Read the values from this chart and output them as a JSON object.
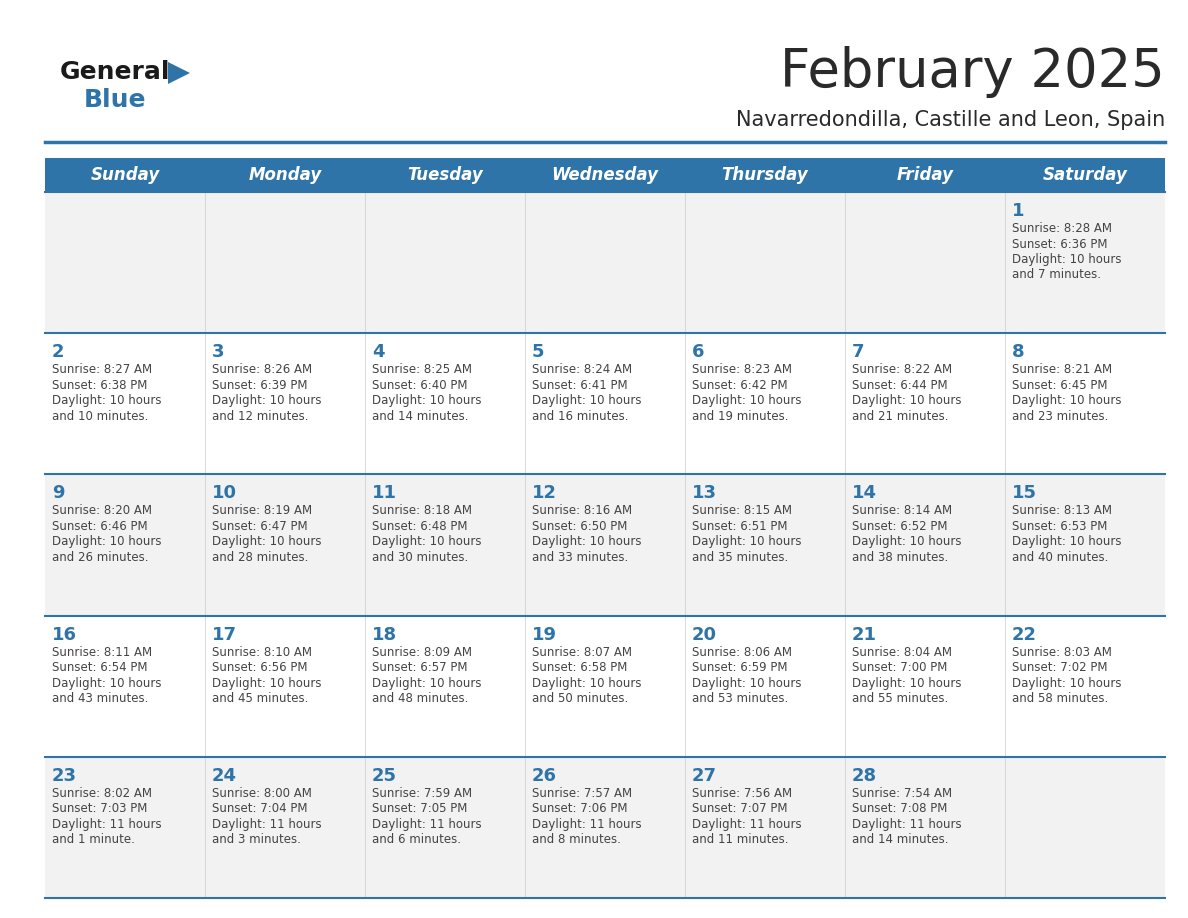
{
  "title": "February 2025",
  "subtitle": "Navarredondilla, Castille and Leon, Spain",
  "days_of_week": [
    "Sunday",
    "Monday",
    "Tuesday",
    "Wednesday",
    "Thursday",
    "Friday",
    "Saturday"
  ],
  "header_bg": "#2E74A8",
  "header_text_color": "#FFFFFF",
  "cell_bg_odd": "#F2F2F2",
  "cell_bg_even": "#FFFFFF",
  "separator_color": "#2E74A8",
  "day_num_color": "#2E74A8",
  "text_color": "#444444",
  "logo_general_color": "#1a1a1a",
  "logo_blue_color": "#2E74A8",
  "weeks": [
    [
      null,
      null,
      null,
      null,
      null,
      null,
      1
    ],
    [
      2,
      3,
      4,
      5,
      6,
      7,
      8
    ],
    [
      9,
      10,
      11,
      12,
      13,
      14,
      15
    ],
    [
      16,
      17,
      18,
      19,
      20,
      21,
      22
    ],
    [
      23,
      24,
      25,
      26,
      27,
      28,
      null
    ]
  ],
  "sun_set_data": {
    "1": {
      "rise": "8:28 AM",
      "set": "6:36 PM",
      "hours": 10,
      "mins": 7
    },
    "2": {
      "rise": "8:27 AM",
      "set": "6:38 PM",
      "hours": 10,
      "mins": 10
    },
    "3": {
      "rise": "8:26 AM",
      "set": "6:39 PM",
      "hours": 10,
      "mins": 12
    },
    "4": {
      "rise": "8:25 AM",
      "set": "6:40 PM",
      "hours": 10,
      "mins": 14
    },
    "5": {
      "rise": "8:24 AM",
      "set": "6:41 PM",
      "hours": 10,
      "mins": 16
    },
    "6": {
      "rise": "8:23 AM",
      "set": "6:42 PM",
      "hours": 10,
      "mins": 19
    },
    "7": {
      "rise": "8:22 AM",
      "set": "6:44 PM",
      "hours": 10,
      "mins": 21
    },
    "8": {
      "rise": "8:21 AM",
      "set": "6:45 PM",
      "hours": 10,
      "mins": 23
    },
    "9": {
      "rise": "8:20 AM",
      "set": "6:46 PM",
      "hours": 10,
      "mins": 26
    },
    "10": {
      "rise": "8:19 AM",
      "set": "6:47 PM",
      "hours": 10,
      "mins": 28
    },
    "11": {
      "rise": "8:18 AM",
      "set": "6:48 PM",
      "hours": 10,
      "mins": 30
    },
    "12": {
      "rise": "8:16 AM",
      "set": "6:50 PM",
      "hours": 10,
      "mins": 33
    },
    "13": {
      "rise": "8:15 AM",
      "set": "6:51 PM",
      "hours": 10,
      "mins": 35
    },
    "14": {
      "rise": "8:14 AM",
      "set": "6:52 PM",
      "hours": 10,
      "mins": 38
    },
    "15": {
      "rise": "8:13 AM",
      "set": "6:53 PM",
      "hours": 10,
      "mins": 40
    },
    "16": {
      "rise": "8:11 AM",
      "set": "6:54 PM",
      "hours": 10,
      "mins": 43
    },
    "17": {
      "rise": "8:10 AM",
      "set": "6:56 PM",
      "hours": 10,
      "mins": 45
    },
    "18": {
      "rise": "8:09 AM",
      "set": "6:57 PM",
      "hours": 10,
      "mins": 48
    },
    "19": {
      "rise": "8:07 AM",
      "set": "6:58 PM",
      "hours": 10,
      "mins": 50
    },
    "20": {
      "rise": "8:06 AM",
      "set": "6:59 PM",
      "hours": 10,
      "mins": 53
    },
    "21": {
      "rise": "8:04 AM",
      "set": "7:00 PM",
      "hours": 10,
      "mins": 55
    },
    "22": {
      "rise": "8:03 AM",
      "set": "7:02 PM",
      "hours": 10,
      "mins": 58
    },
    "23": {
      "rise": "8:02 AM",
      "set": "7:03 PM",
      "hours": 11,
      "mins": 1
    },
    "24": {
      "rise": "8:00 AM",
      "set": "7:04 PM",
      "hours": 11,
      "mins": 3
    },
    "25": {
      "rise": "7:59 AM",
      "set": "7:05 PM",
      "hours": 11,
      "mins": 6
    },
    "26": {
      "rise": "7:57 AM",
      "set": "7:06 PM",
      "hours": 11,
      "mins": 8
    },
    "27": {
      "rise": "7:56 AM",
      "set": "7:07 PM",
      "hours": 11,
      "mins": 11
    },
    "28": {
      "rise": "7:54 AM",
      "set": "7:08 PM",
      "hours": 11,
      "mins": 14
    }
  }
}
